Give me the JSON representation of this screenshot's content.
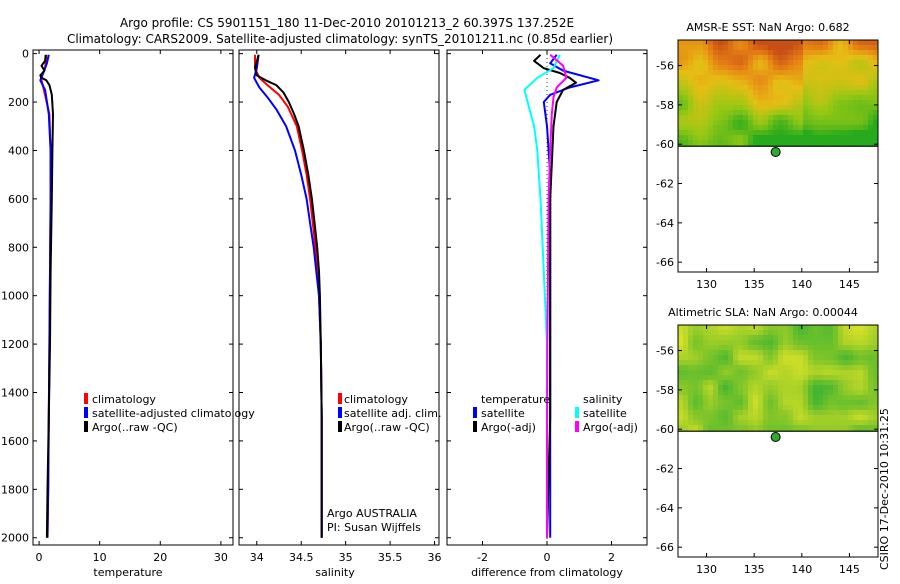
{
  "title_line1": "Argo profile: CS 5901151_180 11-Dec-2010 20101213_2 60.397S 137.252E",
  "title_line2": "Climatology: CARS2009. Satellite-adjusted climatology: synTS_20101211.nc (0.85d earlier)",
  "stamp": "CSIRO 17-Dec-2010 10:31:25",
  "colors": {
    "climatology": "#ff0000",
    "satellite": "#0000ff",
    "argo": "#000000",
    "sat_diff_sal": "#00ffff",
    "argo_diff_sal": "#ff00ff"
  },
  "chart_data": [
    {
      "id": "temp",
      "type": "line",
      "xlabel": "temperature",
      "xlim": [
        -1,
        32
      ],
      "ylim": [
        2030,
        -15
      ],
      "xticks": [
        "0",
        "10",
        "20",
        "30"
      ],
      "xtick_values": [
        0,
        10,
        20,
        30
      ],
      "yticks": [
        "0",
        "200",
        "400",
        "600",
        "800",
        "1000",
        "1200",
        "1400",
        "1600",
        "1800",
        "2000"
      ],
      "ytick_values": [
        0,
        200,
        400,
        600,
        800,
        1000,
        1200,
        1400,
        1600,
        1800,
        2000
      ],
      "legend": [
        "climatology",
        "satellite-adjusted climatology",
        "Argo(..raw -QC)"
      ],
      "series": [
        {
          "name": "climatology",
          "color": "#ff0000",
          "y": [
            5,
            60,
            100,
            150,
            250,
            400,
            600,
            900,
            1200,
            1500,
            1800,
            2000
          ],
          "x": [
            1.2,
            1.0,
            0.3,
            0.8,
            1.7,
            1.9,
            1.9,
            1.8,
            1.7,
            1.6,
            1.5,
            1.4
          ]
        },
        {
          "name": "satellite-adjusted",
          "color": "#0000ff",
          "y": [
            5,
            40,
            80,
            110,
            150,
            250,
            400,
            600,
            900,
            1200,
            1500,
            1800,
            2000
          ],
          "x": [
            1.6,
            1.3,
            0.7,
            0.2,
            1.0,
            1.6,
            1.9,
            1.9,
            1.8,
            1.7,
            1.6,
            1.5,
            1.4
          ]
        },
        {
          "name": "Argo",
          "color": "#000000",
          "y": [
            5,
            30,
            50,
            70,
            90,
            100,
            110,
            130,
            170,
            250,
            400,
            600,
            900,
            1200,
            1500,
            1800,
            2000
          ],
          "x": [
            1.1,
            1.0,
            0.4,
            0.9,
            0.2,
            0.4,
            1.2,
            1.7,
            2.1,
            2.3,
            2.2,
            2.1,
            1.9,
            1.8,
            1.6,
            1.4,
            1.3
          ]
        }
      ]
    },
    {
      "id": "sal",
      "type": "line",
      "xlabel": "salinity",
      "xlim": [
        33.8,
        36.05
      ],
      "ylim": [
        2030,
        -15
      ],
      "xticks": [
        "34",
        "34.5",
        "35",
        "35.5",
        "36"
      ],
      "xtick_values": [
        34,
        34.5,
        35,
        35.5,
        36
      ],
      "legend": [
        "climatology",
        "satellite adj. clim.",
        "Argo(..raw -QC)"
      ],
      "annotation": [
        "Argo AUSTRALIA",
        "PI: Susan Wijffels"
      ],
      "series": [
        {
          "name": "climatology",
          "color": "#ff0000",
          "y": [
            5,
            60,
            100,
            130,
            170,
            220,
            300,
            400,
            500,
            600,
            700,
            800,
            900,
            1000,
            1200,
            1500,
            2000
          ],
          "x": [
            33.98,
            33.98,
            34.03,
            34.12,
            34.25,
            34.35,
            34.45,
            34.51,
            34.56,
            34.6,
            34.63,
            34.66,
            34.68,
            34.7,
            34.72,
            34.73,
            34.73
          ]
        },
        {
          "name": "satellite-adjusted",
          "color": "#0000ff",
          "y": [
            5,
            60,
            100,
            140,
            180,
            230,
            300,
            400,
            500,
            600,
            700,
            800,
            900,
            1000,
            1200,
            1500,
            2000
          ],
          "x": [
            34.02,
            34.0,
            33.97,
            34.03,
            34.12,
            34.22,
            34.33,
            34.43,
            34.5,
            34.56,
            34.6,
            34.64,
            34.67,
            34.7,
            34.72,
            34.73,
            34.73
          ]
        },
        {
          "name": "Argo",
          "color": "#000000",
          "y": [
            5,
            60,
            90,
            110,
            130,
            160,
            200,
            250,
            300,
            400,
            500,
            600,
            700,
            800,
            900,
            1000,
            1200,
            1500,
            2000
          ],
          "x": [
            34.02,
            33.98,
            34.0,
            34.1,
            34.22,
            34.3,
            34.36,
            34.42,
            34.47,
            34.53,
            34.58,
            34.62,
            34.65,
            34.68,
            34.7,
            34.71,
            34.72,
            34.73,
            34.73
          ]
        }
      ]
    },
    {
      "id": "diff",
      "type": "line",
      "xlabel": "difference from climatology",
      "xlim": [
        -3.1,
        3.1
      ],
      "ylim": [
        2030,
        -15
      ],
      "xticks": [
        "-2",
        "0",
        "2"
      ],
      "xtick_values": [
        -2,
        0,
        2
      ],
      "legend_headers": [
        "temperature",
        "salinity"
      ],
      "legend": [
        "satellite",
        "Argo(-adj)",
        "satellite",
        "Argo(-adj)"
      ],
      "series": [
        {
          "name": "temperature satellite",
          "color": "#0000ff",
          "y": [
            5,
            40,
            70,
            110,
            140,
            170,
            200,
            300,
            500,
            800,
            1200,
            1600,
            2000
          ],
          "x": [
            0.3,
            0.1,
            0.5,
            1.6,
            0.7,
            0.1,
            -0.1,
            0.0,
            0.1,
            0.1,
            0.1,
            0.1,
            0.1
          ]
        },
        {
          "name": "temperature Argo(-adj)",
          "color": "#000000",
          "y": [
            5,
            30,
            60,
            80,
            100,
            120,
            150,
            200,
            300,
            600,
            1000,
            1500,
            2000
          ],
          "x": [
            -0.2,
            -0.4,
            -0.1,
            0.4,
            0.7,
            0.9,
            0.5,
            0.3,
            0.2,
            0.1,
            0.1,
            0.1,
            0.0
          ]
        },
        {
          "name": "salinity satellite",
          "color": "#00ffff",
          "y": [
            5,
            60,
            100,
            150,
            200,
            300,
            400,
            600,
            900,
            1200,
            1600,
            2000
          ],
          "x": [
            0.4,
            0.2,
            -0.3,
            -0.7,
            -0.6,
            -0.4,
            -0.3,
            -0.2,
            -0.1,
            0.0,
            0.0,
            0.0
          ]
        },
        {
          "name": "salinity Argo(-adj)",
          "color": "#ff00ff",
          "y": [
            5,
            50,
            100,
            140,
            180,
            250,
            400,
            600,
            900,
            1200,
            1600,
            2000
          ],
          "x": [
            0.1,
            0.5,
            0.6,
            0.3,
            0.2,
            0.15,
            0.1,
            0.05,
            0.03,
            0.01,
            0.0,
            0.0
          ]
        }
      ]
    },
    {
      "id": "sst_map",
      "type": "heatmap",
      "title": "AMSR-E SST: NaN Argo: 0.682",
      "xlim": [
        127,
        148
      ],
      "ylim": [
        -66.5,
        -54.7
      ],
      "xticks": [
        "130",
        "135",
        "140",
        "145"
      ],
      "xtick_values": [
        130,
        135,
        140,
        145
      ],
      "yticks": [
        "-56",
        "-58",
        "-60",
        "-62",
        "-64",
        "-66"
      ],
      "ytick_values": [
        -56,
        -58,
        -60,
        -62,
        -64,
        -66
      ],
      "data_lat_range": [
        -60.1,
        -54.7
      ],
      "argo_position": [
        137.252,
        -60.397
      ]
    },
    {
      "id": "sla_map",
      "type": "heatmap",
      "title": "Altimetric SLA: NaN Argo: 0.00044",
      "xlim": [
        127,
        148
      ],
      "ylim": [
        -66.5,
        -54.7
      ],
      "xticks": [
        "130",
        "135",
        "140",
        "145"
      ],
      "xtick_values": [
        130,
        135,
        140,
        145
      ],
      "yticks": [
        "-56",
        "-58",
        "-60",
        "-62",
        "-64",
        "-66"
      ],
      "ytick_values": [
        -56,
        -58,
        -60,
        -62,
        -64,
        -66
      ],
      "data_lat_range": [
        -60.1,
        -54.7
      ],
      "argo_position": [
        137.252,
        -60.397
      ]
    }
  ]
}
